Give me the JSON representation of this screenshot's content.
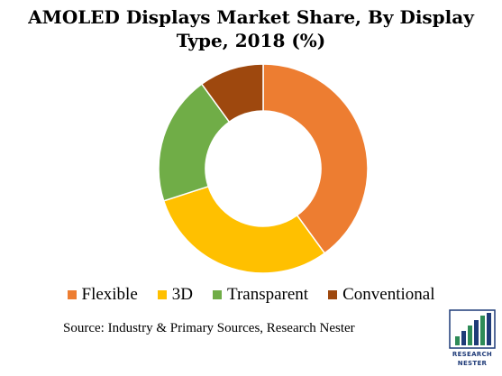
{
  "title_line1": "AMOLED Displays Market Share, By Display",
  "title_line2": "Type, 2018 (%)",
  "chart_data": {
    "type": "pie",
    "style": "donut",
    "title": "AMOLED Displays Market Share, By Display Type, 2018 (%)",
    "categories": [
      "Flexible",
      "3D",
      "Transparent",
      "Conventional"
    ],
    "values": [
      40,
      30,
      20,
      10
    ],
    "colors": [
      "#ED7D31",
      "#FFC000",
      "#70AD47",
      "#9E480E"
    ],
    "legend_position": "bottom"
  },
  "source": "Source: Industry & Primary Sources, Research Nester",
  "logo": {
    "line1": "RESEARCH",
    "line2": "NESTER",
    "icon": "bar-chart-logo-icon",
    "colors": [
      "#1f3b78",
      "#2e8b57"
    ]
  }
}
